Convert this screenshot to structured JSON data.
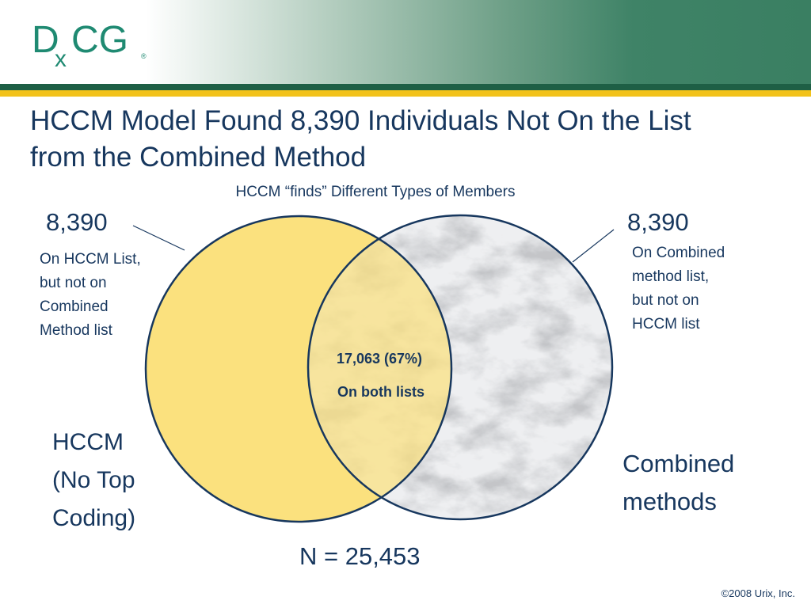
{
  "logo": {
    "text": "DxCG",
    "part_d": "D",
    "part_x": "x",
    "part_cg": "CG",
    "registered": "®"
  },
  "slide": {
    "title_line1": "HCCM Model Found 8,390 Individuals Not On the List",
    "title_line2": "from the Combined Method",
    "subtitle": "HCCM “finds” Different Types of Members"
  },
  "left_set": {
    "count": "8,390",
    "desc_lines": [
      "On HCCM List,",
      "but not on",
      "Combined",
      "Method list"
    ],
    "name_lines": [
      "HCCM",
      "(No Top",
      "Coding)"
    ]
  },
  "right_set": {
    "count": "8,390",
    "desc_lines": [
      "On Combined",
      "method list,",
      "but not on",
      "HCCM list"
    ],
    "name_lines": [
      "Combined",
      "methods"
    ]
  },
  "overlap": {
    "count": "17,063 (67%)",
    "label": "On both lists"
  },
  "total": "N = 25,453",
  "footer": "©2008 Urix, Inc.",
  "colors": {
    "left_fill": "#fbe17e",
    "outline": "#17375e",
    "text": "#17375e",
    "header_green": "#3a7f62",
    "gold": "#f2c21a"
  }
}
